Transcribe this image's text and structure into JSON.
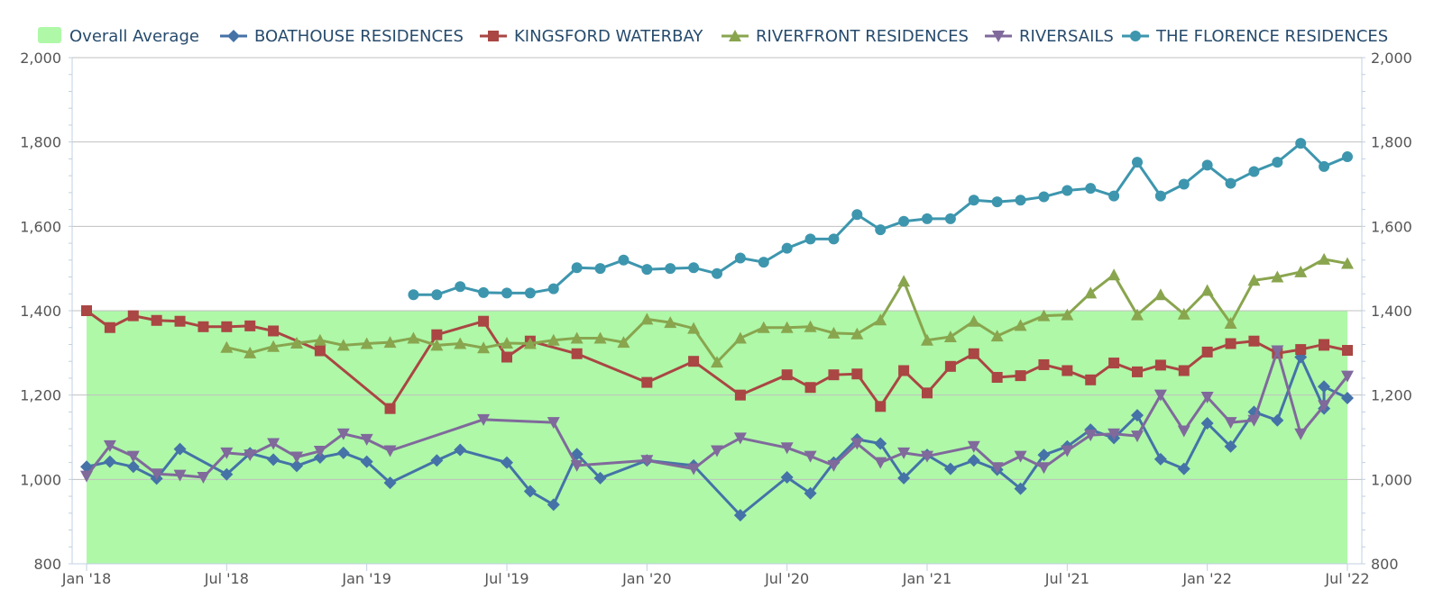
{
  "chart_data": {
    "type": "line",
    "title": "",
    "xlabel": "",
    "ylabel": "",
    "ylim": [
      800,
      2000
    ],
    "y_ticks": [
      800,
      1000,
      1200,
      1400,
      1600,
      1800,
      2000
    ],
    "y_tick_labels": [
      "800",
      "1,000",
      "1,200",
      "1,400",
      "1,600",
      "1,800",
      "2,000"
    ],
    "x_range": [
      "2018-01",
      "2022-07"
    ],
    "x_ticks": [
      {
        "date": "2018-01",
        "label": "Jan '18"
      },
      {
        "date": "2018-07",
        "label": "Jul '18"
      },
      {
        "date": "2019-01",
        "label": "Jan '19"
      },
      {
        "date": "2019-07",
        "label": "Jul '19"
      },
      {
        "date": "2020-01",
        "label": "Jan '20"
      },
      {
        "date": "2020-07",
        "label": "Jul '20"
      },
      {
        "date": "2021-01",
        "label": "Jan '21"
      },
      {
        "date": "2021-07",
        "label": "Jul '21"
      },
      {
        "date": "2022-01",
        "label": "Jan '22"
      },
      {
        "date": "2022-07",
        "label": "Jul '22"
      }
    ],
    "grid": true,
    "legend_position": "top",
    "dual_y_axis": true,
    "band": {
      "name": "Overall Average",
      "from": 800,
      "to": 1400,
      "x_from": "2018-01",
      "x_to": "2022-07",
      "color": "#aef8a8"
    },
    "series": [
      {
        "name": "BOATHOUSE RESIDENCES",
        "color": "#4572a7",
        "marker": "diamond",
        "points": [
          [
            "2018-01",
            1030
          ],
          [
            "2018-02",
            1042
          ],
          [
            "2018-03",
            1030
          ],
          [
            "2018-04",
            1002
          ],
          [
            "2018-05",
            1072
          ],
          [
            "2018-07",
            1012
          ],
          [
            "2018-08",
            1062
          ],
          [
            "2018-09",
            1047
          ],
          [
            "2018-10",
            1032
          ],
          [
            "2018-11",
            1052
          ],
          [
            "2018-12",
            1063
          ],
          [
            "2019-01",
            1042
          ],
          [
            "2019-02",
            992
          ],
          [
            "2019-04",
            1045
          ],
          [
            "2019-05",
            1070
          ],
          [
            "2019-07",
            1040
          ],
          [
            "2019-08",
            972
          ],
          [
            "2019-09",
            940
          ],
          [
            "2019-10",
            1060
          ],
          [
            "2019-11",
            1003
          ],
          [
            "2020-01",
            1045
          ],
          [
            "2020-03",
            1033
          ],
          [
            "2020-05",
            915
          ],
          [
            "2020-07",
            1005
          ],
          [
            "2020-08",
            967
          ],
          [
            "2020-09",
            1040
          ],
          [
            "2020-10",
            1095
          ],
          [
            "2020-11",
            1085
          ],
          [
            "2020-12",
            1003
          ],
          [
            "2021-01",
            1058
          ],
          [
            "2021-02",
            1025
          ],
          [
            "2021-03",
            1045
          ],
          [
            "2021-04",
            1023
          ],
          [
            "2021-05",
            978
          ],
          [
            "2021-06",
            1058
          ],
          [
            "2021-07",
            1078
          ],
          [
            "2021-08",
            1118
          ],
          [
            "2021-09",
            1098
          ],
          [
            "2021-10",
            1152
          ],
          [
            "2021-11",
            1048
          ],
          [
            "2021-12",
            1025
          ],
          [
            "2022-01",
            1133
          ],
          [
            "2022-02",
            1078
          ],
          [
            "2022-03",
            1160
          ],
          [
            "2022-04",
            1140
          ],
          [
            "2022-05",
            1290
          ],
          [
            "2022-06",
            1168
          ],
          [
            "2022-07",
            1220
          ],
          [
            "2022-07",
            1193
          ]
        ]
      },
      {
        "name": "KINGSFORD WATERBAY",
        "color": "#aa4643",
        "marker": "square",
        "points": [
          [
            "2018-01",
            1400
          ],
          [
            "2018-02",
            1360
          ],
          [
            "2018-03",
            1388
          ],
          [
            "2018-04",
            1377
          ],
          [
            "2018-05",
            1375
          ],
          [
            "2018-06",
            1362
          ],
          [
            "2018-07",
            1362
          ],
          [
            "2018-08",
            1364
          ],
          [
            "2018-09",
            1352
          ],
          [
            "2018-11",
            1305
          ],
          [
            "2019-02",
            1168
          ],
          [
            "2019-04",
            1343
          ],
          [
            "2019-06",
            1375
          ],
          [
            "2019-07",
            1290
          ],
          [
            "2019-08",
            1328
          ],
          [
            "2019-10",
            1298
          ],
          [
            "2020-01",
            1230
          ],
          [
            "2020-03",
            1280
          ],
          [
            "2020-05",
            1200
          ],
          [
            "2020-07",
            1248
          ],
          [
            "2020-08",
            1218
          ],
          [
            "2020-09",
            1248
          ],
          [
            "2020-10",
            1250
          ],
          [
            "2020-11",
            1173
          ],
          [
            "2020-12",
            1258
          ],
          [
            "2021-01",
            1205
          ],
          [
            "2021-02",
            1268
          ],
          [
            "2021-03",
            1298
          ],
          [
            "2021-04",
            1242
          ],
          [
            "2021-05",
            1246
          ],
          [
            "2021-06",
            1272
          ],
          [
            "2021-07",
            1258
          ],
          [
            "2021-08",
            1236
          ],
          [
            "2021-09",
            1276
          ],
          [
            "2021-10",
            1255
          ],
          [
            "2021-11",
            1271
          ],
          [
            "2021-12",
            1258
          ],
          [
            "2022-01",
            1302
          ],
          [
            "2022-02",
            1322
          ],
          [
            "2022-03",
            1328
          ],
          [
            "2022-04",
            1299
          ],
          [
            "2022-05",
            1308
          ],
          [
            "2022-06",
            1320
          ],
          [
            "2022-07",
            1318
          ],
          [
            "2022-07",
            1306
          ]
        ]
      },
      {
        "name": "RIVERFRONT RESIDENCES",
        "color": "#89a54e",
        "marker": "triangle",
        "points": [
          [
            "2018-07",
            1313
          ],
          [
            "2018-08",
            1300
          ],
          [
            "2018-09",
            1315
          ],
          [
            "2018-10",
            1323
          ],
          [
            "2018-11",
            1330
          ],
          [
            "2018-12",
            1318
          ],
          [
            "2019-01",
            1322
          ],
          [
            "2019-02",
            1325
          ],
          [
            "2019-03",
            1335
          ],
          [
            "2019-04",
            1318
          ],
          [
            "2019-05",
            1322
          ],
          [
            "2019-06",
            1312
          ],
          [
            "2019-07",
            1323
          ],
          [
            "2019-08",
            1322
          ],
          [
            "2019-09",
            1330
          ],
          [
            "2019-10",
            1335
          ],
          [
            "2019-11",
            1335
          ],
          [
            "2019-12",
            1325
          ],
          [
            "2020-01",
            1380
          ],
          [
            "2020-02",
            1372
          ],
          [
            "2020-03",
            1358
          ],
          [
            "2020-04",
            1278
          ],
          [
            "2020-05",
            1335
          ],
          [
            "2020-06",
            1360
          ],
          [
            "2020-07",
            1360
          ],
          [
            "2020-08",
            1362
          ],
          [
            "2020-09",
            1347
          ],
          [
            "2020-10",
            1345
          ],
          [
            "2020-11",
            1378
          ],
          [
            "2020-12",
            1470
          ],
          [
            "2021-01",
            1330
          ],
          [
            "2021-02",
            1338
          ],
          [
            "2021-03",
            1375
          ],
          [
            "2021-04",
            1340
          ],
          [
            "2021-05",
            1365
          ],
          [
            "2021-06",
            1388
          ],
          [
            "2021-07",
            1390
          ],
          [
            "2021-08",
            1442
          ],
          [
            "2021-09",
            1485
          ],
          [
            "2021-10",
            1390
          ],
          [
            "2021-11",
            1438
          ],
          [
            "2021-12",
            1392
          ],
          [
            "2022-01",
            1448
          ],
          [
            "2022-02",
            1370
          ],
          [
            "2022-03",
            1472
          ],
          [
            "2022-04",
            1480
          ],
          [
            "2022-05",
            1492
          ],
          [
            "2022-06",
            1522
          ],
          [
            "2022-07",
            1512
          ]
        ]
      },
      {
        "name": "RIVERSAILS",
        "color": "#80699b",
        "marker": "triangle-down",
        "points": [
          [
            "2018-01",
            1008
          ],
          [
            "2018-02",
            1080
          ],
          [
            "2018-03",
            1055
          ],
          [
            "2018-04",
            1013
          ],
          [
            "2018-05",
            1010
          ],
          [
            "2018-06",
            1005
          ],
          [
            "2018-07",
            1063
          ],
          [
            "2018-08",
            1058
          ],
          [
            "2018-09",
            1085
          ],
          [
            "2018-10",
            1053
          ],
          [
            "2018-11",
            1067
          ],
          [
            "2018-12",
            1108
          ],
          [
            "2019-01",
            1095
          ],
          [
            "2019-02",
            1068
          ],
          [
            "2019-06",
            1142
          ],
          [
            "2019-09",
            1135
          ],
          [
            "2019-10",
            1033
          ],
          [
            "2020-01",
            1045
          ],
          [
            "2020-03",
            1025
          ],
          [
            "2020-04",
            1068
          ],
          [
            "2020-05",
            1098
          ],
          [
            "2020-07",
            1075
          ],
          [
            "2020-08",
            1055
          ],
          [
            "2020-09",
            1033
          ],
          [
            "2020-10",
            1085
          ],
          [
            "2020-11",
            1040
          ],
          [
            "2020-12",
            1063
          ],
          [
            "2021-01",
            1055
          ],
          [
            "2021-03",
            1078
          ],
          [
            "2021-04",
            1028
          ],
          [
            "2021-05",
            1055
          ],
          [
            "2021-06",
            1028
          ],
          [
            "2021-07",
            1068
          ],
          [
            "2021-08",
            1105
          ],
          [
            "2021-09",
            1108
          ],
          [
            "2021-10",
            1103
          ],
          [
            "2021-11",
            1200
          ],
          [
            "2021-12",
            1115
          ],
          [
            "2022-01",
            1195
          ],
          [
            "2022-02",
            1135
          ],
          [
            "2022-03",
            1140
          ],
          [
            "2022-04",
            1305
          ],
          [
            "2022-05",
            1108
          ],
          [
            "2022-06",
            1175
          ],
          [
            "2022-07",
            1245
          ]
        ]
      },
      {
        "name": "THE FLORENCE RESIDENCES",
        "color": "#3d96ae",
        "marker": "circle",
        "points": [
          [
            "2019-03",
            1438
          ],
          [
            "2019-04",
            1438
          ],
          [
            "2019-05",
            1457
          ],
          [
            "2019-06",
            1443
          ],
          [
            "2019-07",
            1442
          ],
          [
            "2019-08",
            1442
          ],
          [
            "2019-09",
            1452
          ],
          [
            "2019-10",
            1502
          ],
          [
            "2019-11",
            1500
          ],
          [
            "2019-12",
            1520
          ],
          [
            "2020-01",
            1498
          ],
          [
            "2020-02",
            1500
          ],
          [
            "2020-03",
            1502
          ],
          [
            "2020-04",
            1488
          ],
          [
            "2020-05",
            1525
          ],
          [
            "2020-06",
            1515
          ],
          [
            "2020-07",
            1548
          ],
          [
            "2020-08",
            1570
          ],
          [
            "2020-09",
            1570
          ],
          [
            "2020-10",
            1628
          ],
          [
            "2020-11",
            1592
          ],
          [
            "2020-12",
            1612
          ],
          [
            "2021-01",
            1618
          ],
          [
            "2021-02",
            1618
          ],
          [
            "2021-03",
            1662
          ],
          [
            "2021-04",
            1658
          ],
          [
            "2021-05",
            1662
          ],
          [
            "2021-06",
            1670
          ],
          [
            "2021-07",
            1685
          ],
          [
            "2021-08",
            1690
          ],
          [
            "2021-09",
            1672
          ],
          [
            "2021-10",
            1752
          ],
          [
            "2021-11",
            1672
          ],
          [
            "2021-12",
            1700
          ],
          [
            "2022-01",
            1745
          ],
          [
            "2022-02",
            1702
          ],
          [
            "2022-03",
            1730
          ],
          [
            "2022-04",
            1752
          ],
          [
            "2022-05",
            1797
          ],
          [
            "2022-06",
            1742
          ],
          [
            "2022-07",
            1765
          ]
        ]
      }
    ]
  }
}
